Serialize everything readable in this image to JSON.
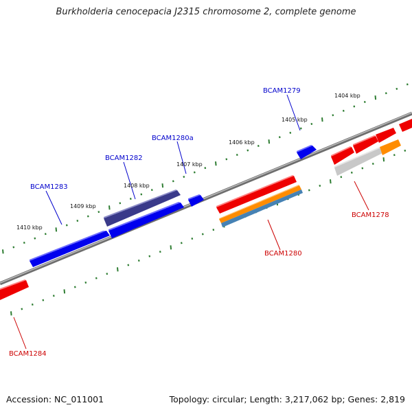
{
  "title": "Burkholderia cenocepacia J2315 chromosome 2, complete genome",
  "footer": {
    "accession": "Accession: NC_011001",
    "summary": "Topology: circular; Length: 3,217,062 bp; Genes: 2,819"
  },
  "colors": {
    "forward_gene": "#0000ff",
    "forward_gene_dark": "#3c3c8c",
    "reverse_gene": "#ff0000",
    "orange_gene": "#ff8c00",
    "steelblue_gene": "#4682b4",
    "gray_gene": "#c0c0c0",
    "backbone": "#808080",
    "tick": "#228b22"
  },
  "scale_labels": [
    {
      "id": "1410",
      "text": "1410 kbp"
    },
    {
      "id": "1409",
      "text": "1409 kbp"
    },
    {
      "id": "1408",
      "text": "1408 kbp"
    },
    {
      "id": "1407",
      "text": "1407 kbp"
    },
    {
      "id": "1406",
      "text": "1406 kbp"
    },
    {
      "id": "1405",
      "text": "1405 kbp"
    },
    {
      "id": "1404",
      "text": "1404 kbp"
    }
  ],
  "gene_labels": [
    {
      "id": "BCAM1283",
      "text": "BCAM1283",
      "strand": "forward"
    },
    {
      "id": "BCAM1282",
      "text": "BCAM1282",
      "strand": "forward"
    },
    {
      "id": "BCAM1280a",
      "text": "BCAM1280a",
      "strand": "forward"
    },
    {
      "id": "BCAM1279",
      "text": "BCAM1279",
      "strand": "forward"
    },
    {
      "id": "BCAM1280",
      "text": "BCAM1280",
      "strand": "reverse"
    },
    {
      "id": "BCAM1278",
      "text": "BCAM1278",
      "strand": "reverse"
    },
    {
      "id": "BCAM1284",
      "text": "BCAM1284",
      "strand": "reverse"
    }
  ]
}
